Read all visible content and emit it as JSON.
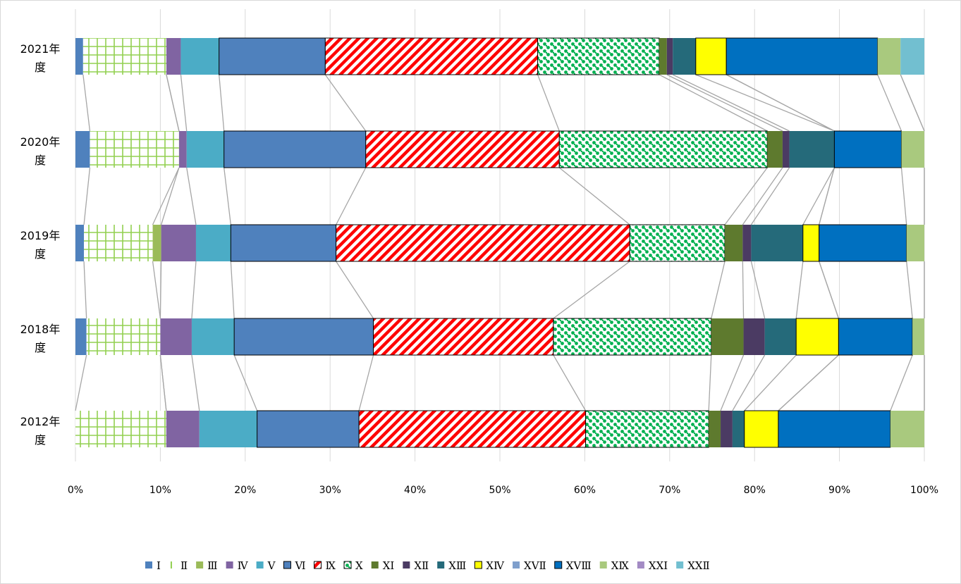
{
  "chart_data": {
    "type": "bar",
    "orientation": "horizontal",
    "stacked": "percent",
    "x_ticks": [
      "0%",
      "10%",
      "20%",
      "30%",
      "40%",
      "50%",
      "60%",
      "70%",
      "80%",
      "90%",
      "100%"
    ],
    "xlim": [
      0,
      100
    ],
    "grid": "vertical",
    "legend_position": "bottom",
    "series_lines": true,
    "categories": [
      [
        "2021年",
        "度"
      ],
      [
        "2020年",
        "度"
      ],
      [
        "2019年",
        "度"
      ],
      [
        "2018年",
        "度"
      ],
      [
        "2012年",
        "度"
      ]
    ],
    "series": [
      {
        "name": "Ⅰ",
        "color": "#4f81bd",
        "pattern": "solid",
        "values": [
          0.9,
          1.7,
          1.0,
          1.3,
          0.0
        ]
      },
      {
        "name": "Ⅱ",
        "color": "#92d050",
        "pattern": "grid",
        "values": [
          9.8,
          10.5,
          8.1,
          8.7,
          10.7
        ]
      },
      {
        "name": "Ⅲ",
        "color": "#9bbb59",
        "pattern": "solid",
        "values": [
          0.0,
          0.0,
          1.0,
          0.0,
          0.0
        ]
      },
      {
        "name": "Ⅳ",
        "color": "#8064a2",
        "pattern": "solid",
        "values": [
          1.7,
          0.9,
          4.1,
          3.7,
          3.9
        ]
      },
      {
        "name": "Ⅴ",
        "color": "#4bacc6",
        "pattern": "solid",
        "values": [
          4.5,
          4.4,
          4.1,
          5.0,
          6.8
        ]
      },
      {
        "name": "Ⅵ",
        "color": "#4f81bd",
        "pattern": "outlined",
        "values": [
          12.5,
          16.7,
          12.4,
          16.4,
          12.0
        ]
      },
      {
        "name": "Ⅸ",
        "color": "#ff0000",
        "pattern": "diagonal",
        "values": [
          25.0,
          22.8,
          34.6,
          21.2,
          26.7
        ]
      },
      {
        "name": "Ⅹ",
        "color": "#00b050",
        "pattern": "dots",
        "values": [
          14.3,
          24.5,
          11.2,
          18.6,
          14.5
        ]
      },
      {
        "name": "XⅠ",
        "color": "#5e7a2e",
        "pattern": "solid",
        "values": [
          0.9,
          1.8,
          2.1,
          3.8,
          1.4
        ]
      },
      {
        "name": "XⅡ",
        "color": "#4b3b63",
        "pattern": "solid",
        "values": [
          0.7,
          0.8,
          1.0,
          2.5,
          1.4
        ]
      },
      {
        "name": "XⅢ",
        "color": "#256a7a",
        "pattern": "solid",
        "values": [
          2.7,
          5.3,
          6.1,
          3.7,
          1.4
        ]
      },
      {
        "name": "XⅣ",
        "color": "#ffff00",
        "pattern": "outlined",
        "values": [
          3.6,
          0.0,
          1.9,
          5.0,
          4.0
        ]
      },
      {
        "name": "XⅤⅡ",
        "color": "#7f9fcc",
        "pattern": "solid",
        "values": [
          0.0,
          0.0,
          0.0,
          0.0,
          0.0
        ]
      },
      {
        "name": "XⅤⅢ",
        "color": "#0070c0",
        "pattern": "outlined",
        "values": [
          17.8,
          7.9,
          10.3,
          8.7,
          13.2
        ]
      },
      {
        "name": "XⅨ",
        "color": "#a9c97e",
        "pattern": "solid",
        "values": [
          2.7,
          2.7,
          2.1,
          1.4,
          4.0
        ]
      },
      {
        "name": "XXⅠ",
        "color": "#a38bc4",
        "pattern": "solid",
        "values": [
          0.0,
          0.0,
          0.0,
          0.0,
          0.0
        ]
      },
      {
        "name": "XXⅡ",
        "color": "#72bfd0",
        "pattern": "solid",
        "values": [
          2.8,
          0.0,
          0.0,
          0.0,
          0.0
        ]
      }
    ]
  }
}
